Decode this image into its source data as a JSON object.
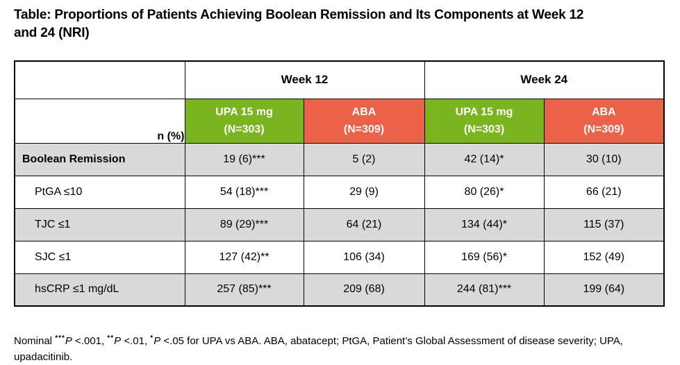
{
  "title_lines": [
    "Table: Proportions of Patients Achieving Boolean Remission and Its Components at Week 12",
    "and 24 (NRI)"
  ],
  "colors": {
    "upa_green": "#7ab41e",
    "aba_orange": "#ec6248",
    "stripe_gray": "#d9d9d9",
    "border_black": "#000000"
  },
  "table": {
    "corner_label": "n (%)",
    "week_groups": [
      {
        "label": "Week 12"
      },
      {
        "label": "Week 24"
      }
    ],
    "arm_columns": [
      {
        "name": "UPA 15 mg",
        "n": "(N=303)",
        "color_key": "upa_green",
        "week": "week12"
      },
      {
        "name": "ABA",
        "n": "(N=309)",
        "color_key": "aba_orange",
        "week": "week12"
      },
      {
        "name": "UPA 15 mg",
        "n": "(N=303)",
        "color_key": "upa_green",
        "week": "week24"
      },
      {
        "name": "ABA",
        "n": "(N=309)",
        "color_key": "aba_orange",
        "week": "week24"
      }
    ],
    "rows": [
      {
        "label": "Boolean Remission",
        "bold": true,
        "values": [
          "19 (6)***",
          "5 (2)",
          "42 (14)*",
          "30 (10)"
        ]
      },
      {
        "label": "PtGA ≤10",
        "bold": false,
        "values": [
          "54 (18)***",
          "29 (9)",
          "80 (26)*",
          "66 (21)"
        ]
      },
      {
        "label": "TJC ≤1",
        "bold": false,
        "values": [
          "89 (29)***",
          "64 (21)",
          "134 (44)*",
          "115 (37)"
        ]
      },
      {
        "label": "SJC ≤1",
        "bold": false,
        "values": [
          "127 (42)**",
          "106 (34)",
          "169 (56)*",
          "152 (49)"
        ]
      },
      {
        "label": "hsCRP ≤1 mg/dL",
        "bold": false,
        "values": [
          "257 (85)***",
          "209 (68)",
          "244 (81)***",
          "199 (64)"
        ]
      }
    ]
  },
  "footnote": {
    "segments": [
      {
        "text": "Nominal ",
        "style": "normal"
      },
      {
        "text": "***",
        "style": "sup"
      },
      {
        "text": "P",
        "style": "italic"
      },
      {
        "text": " <.001, ",
        "style": "normal"
      },
      {
        "text": "**",
        "style": "sup"
      },
      {
        "text": "P",
        "style": "italic"
      },
      {
        "text": " <.01, ",
        "style": "normal"
      },
      {
        "text": "*",
        "style": "sup"
      },
      {
        "text": "P",
        "style": "italic"
      },
      {
        "text": " <.05 for UPA vs ABA. ABA, abatacept; PtGA, Patient’s Global Assessment of disease severity; UPA, upadacitinib.",
        "style": "normal"
      }
    ]
  }
}
